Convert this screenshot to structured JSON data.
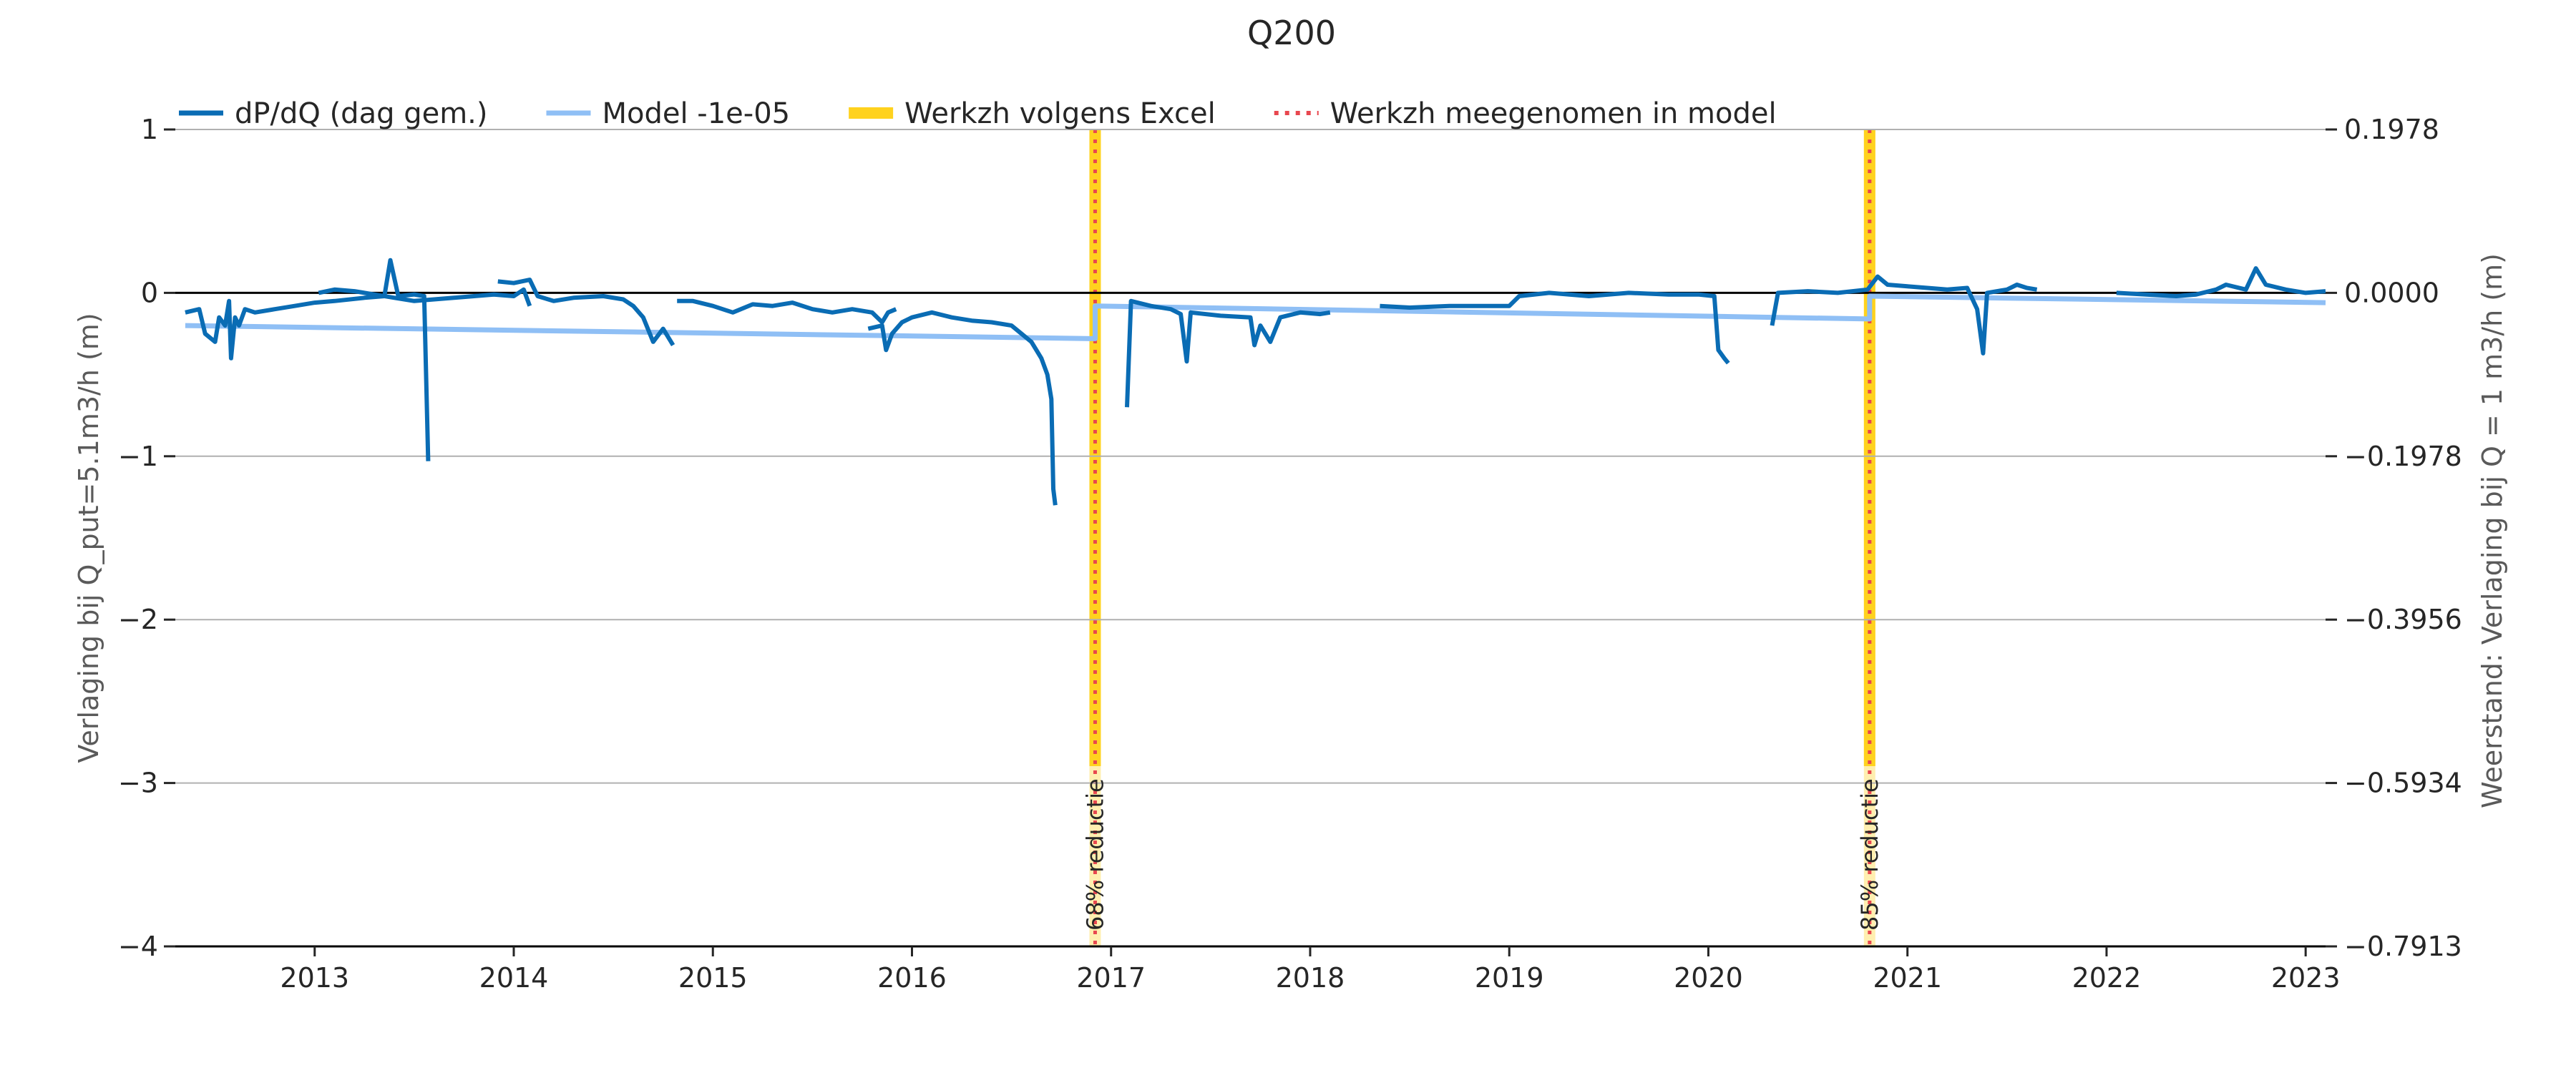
{
  "chart_data": {
    "type": "line",
    "title": "Q200",
    "ylabel": "Verlaging bij Q_put=5.1m3/h (m)",
    "ylabel_right": "Weerstand: Verlaging bij Q = 1 m3/h (m)",
    "xlabel": "",
    "xlim": [
      2012.3,
      2023.1
    ],
    "ylim": [
      -4,
      1
    ],
    "x_ticks": [
      2013,
      2014,
      2015,
      2016,
      2017,
      2018,
      2019,
      2020,
      2021,
      2022,
      2023
    ],
    "x_tick_labels": [
      "2013",
      "2014",
      "2015",
      "2016",
      "2017",
      "2018",
      "2019",
      "2020",
      "2021",
      "2022",
      "2023"
    ],
    "y_ticks": [
      1,
      0,
      -1,
      -2,
      -3,
      -4
    ],
    "y_tick_labels": [
      "1",
      "0",
      "−1",
      "−2",
      "−3",
      "−4"
    ],
    "y2_tick_labels": [
      "0.1978",
      "0.0000",
      "−0.1978",
      "−0.3956",
      "−0.5934",
      "−0.7913"
    ],
    "grid": "horizontal",
    "legend": {
      "placement": "top-left",
      "entries": [
        {
          "name": "dP/dQ (dag gem.)",
          "style": "solid",
          "color": "#0a6cb4"
        },
        {
          "name": "Model -1e-05",
          "style": "solid",
          "color": "#8fbff5"
        },
        {
          "name": "Werkzh volgens Excel",
          "style": "band",
          "color": "#ffd21e"
        },
        {
          "name": "Werkzh meegenomen in model",
          "style": "dotted",
          "color": "#e8474f"
        }
      ]
    },
    "colors": {
      "data": "#0a6cb4",
      "model": "#8fbff5",
      "band": "#ffd21e",
      "dotted": "#e8474f"
    },
    "annotations": [
      {
        "x": 2016.92,
        "text": "68% reductie"
      },
      {
        "x": 2020.81,
        "text": "85% reductie"
      }
    ],
    "series": [
      {
        "name": "dP/dQ (dag gem.)",
        "segments": [
          [
            [
              2012.35,
              -0.12
            ],
            [
              2012.42,
              -0.1
            ],
            [
              2012.45,
              -0.25
            ],
            [
              2012.5,
              -0.3
            ],
            [
              2012.52,
              -0.15
            ],
            [
              2012.55,
              -0.2
            ],
            [
              2012.57,
              -0.05
            ],
            [
              2012.58,
              -0.4
            ],
            [
              2012.6,
              -0.15
            ],
            [
              2012.62,
              -0.2
            ],
            [
              2012.65,
              -0.1
            ],
            [
              2012.7,
              -0.12
            ],
            [
              2012.8,
              -0.1
            ],
            [
              2012.9,
              -0.08
            ],
            [
              2013.0,
              -0.06
            ],
            [
              2013.1,
              -0.05
            ],
            [
              2013.25,
              -0.03
            ],
            [
              2013.35,
              -0.02
            ],
            [
              2013.38,
              0.2
            ],
            [
              2013.42,
              -0.02
            ],
            [
              2013.5,
              -0.01
            ],
            [
              2013.55,
              -0.02
            ],
            [
              2013.57,
              -1.03
            ]
          ],
          [
            [
              2013.02,
              0.0
            ],
            [
              2013.1,
              0.02
            ],
            [
              2013.2,
              0.01
            ],
            [
              2013.3,
              -0.01
            ],
            [
              2013.4,
              -0.03
            ],
            [
              2013.5,
              -0.05
            ],
            [
              2013.6,
              -0.04
            ],
            [
              2013.7,
              -0.03
            ],
            [
              2013.8,
              -0.02
            ],
            [
              2013.9,
              -0.01
            ],
            [
              2014.0,
              -0.02
            ],
            [
              2014.05,
              0.02
            ],
            [
              2014.08,
              -0.08
            ]
          ],
          [
            [
              2013.92,
              0.07
            ],
            [
              2014.0,
              0.06
            ],
            [
              2014.08,
              0.08
            ],
            [
              2014.12,
              -0.02
            ],
            [
              2014.2,
              -0.05
            ],
            [
              2014.3,
              -0.03
            ],
            [
              2014.45,
              -0.02
            ],
            [
              2014.55,
              -0.04
            ],
            [
              2014.6,
              -0.08
            ],
            [
              2014.65,
              -0.15
            ],
            [
              2014.7,
              -0.3
            ],
            [
              2014.75,
              -0.22
            ],
            [
              2014.8,
              -0.32
            ]
          ],
          [
            [
              2014.82,
              -0.05
            ],
            [
              2014.9,
              -0.05
            ],
            [
              2015.0,
              -0.08
            ],
            [
              2015.1,
              -0.12
            ],
            [
              2015.2,
              -0.07
            ],
            [
              2015.3,
              -0.08
            ],
            [
              2015.4,
              -0.06
            ],
            [
              2015.5,
              -0.1
            ],
            [
              2015.6,
              -0.12
            ],
            [
              2015.7,
              -0.1
            ],
            [
              2015.8,
              -0.12
            ],
            [
              2015.85,
              -0.18
            ],
            [
              2015.88,
              -0.12
            ],
            [
              2015.92,
              -0.1
            ]
          ],
          [
            [
              2015.78,
              -0.22
            ],
            [
              2015.85,
              -0.2
            ],
            [
              2015.87,
              -0.35
            ],
            [
              2015.9,
              -0.25
            ],
            [
              2015.95,
              -0.18
            ],
            [
              2016.0,
              -0.15
            ],
            [
              2016.1,
              -0.12
            ],
            [
              2016.2,
              -0.15
            ],
            [
              2016.3,
              -0.17
            ],
            [
              2016.4,
              -0.18
            ],
            [
              2016.5,
              -0.2
            ],
            [
              2016.55,
              -0.25
            ],
            [
              2016.6,
              -0.3
            ],
            [
              2016.65,
              -0.4
            ],
            [
              2016.68,
              -0.5
            ],
            [
              2016.7,
              -0.65
            ],
            [
              2016.71,
              -1.2
            ],
            [
              2016.72,
              -1.3
            ]
          ],
          [
            [
              2017.08,
              -0.7
            ],
            [
              2017.1,
              -0.05
            ],
            [
              2017.2,
              -0.08
            ],
            [
              2017.3,
              -0.1
            ],
            [
              2017.35,
              -0.13
            ],
            [
              2017.38,
              -0.42
            ],
            [
              2017.4,
              -0.12
            ],
            [
              2017.55,
              -0.14
            ],
            [
              2017.7,
              -0.15
            ],
            [
              2017.72,
              -0.32
            ],
            [
              2017.75,
              -0.2
            ],
            [
              2017.8,
              -0.3
            ],
            [
              2017.85,
              -0.15
            ],
            [
              2017.95,
              -0.12
            ],
            [
              2018.05,
              -0.13
            ],
            [
              2018.1,
              -0.12
            ]
          ],
          [
            [
              2018.35,
              -0.08
            ],
            [
              2018.5,
              -0.09
            ],
            [
              2018.7,
              -0.08
            ],
            [
              2018.85,
              -0.08
            ],
            [
              2019.0,
              -0.08
            ],
            [
              2019.05,
              -0.02
            ],
            [
              2019.2,
              0.0
            ],
            [
              2019.4,
              -0.02
            ],
            [
              2019.6,
              0.0
            ],
            [
              2019.8,
              -0.01
            ],
            [
              2019.95,
              -0.01
            ],
            [
              2020.03,
              -0.02
            ],
            [
              2020.05,
              -0.35
            ],
            [
              2020.08,
              -0.4
            ],
            [
              2020.1,
              -0.43
            ]
          ],
          [
            [
              2020.32,
              -0.2
            ],
            [
              2020.35,
              0.0
            ],
            [
              2020.5,
              0.01
            ],
            [
              2020.65,
              0.0
            ],
            [
              2020.8,
              0.02
            ],
            [
              2020.85,
              0.1
            ],
            [
              2020.9,
              0.05
            ],
            [
              2021.0,
              0.04
            ],
            [
              2021.1,
              0.03
            ],
            [
              2021.2,
              0.02
            ],
            [
              2021.3,
              0.03
            ],
            [
              2021.35,
              -0.1
            ],
            [
              2021.38,
              -0.37
            ],
            [
              2021.4,
              0.0
            ],
            [
              2021.5,
              0.02
            ],
            [
              2021.55,
              0.05
            ],
            [
              2021.6,
              0.03
            ],
            [
              2021.65,
              0.02
            ]
          ],
          [
            [
              2022.05,
              0.0
            ],
            [
              2022.2,
              -0.01
            ],
            [
              2022.35,
              -0.02
            ],
            [
              2022.45,
              -0.01
            ],
            [
              2022.55,
              0.02
            ],
            [
              2022.6,
              0.05
            ],
            [
              2022.7,
              0.02
            ],
            [
              2022.75,
              0.15
            ],
            [
              2022.8,
              0.05
            ],
            [
              2022.9,
              0.02
            ],
            [
              2023.0,
              0.0
            ],
            [
              2023.1,
              0.01
            ]
          ]
        ]
      },
      {
        "name": "Model -1e-05",
        "segments": [
          [
            [
              2012.35,
              -0.2
            ],
            [
              2016.92,
              -0.28
            ],
            [
              2016.92,
              -0.08
            ],
            [
              2020.81,
              -0.16
            ],
            [
              2020.81,
              -0.02
            ],
            [
              2023.1,
              -0.06
            ]
          ]
        ]
      }
    ]
  }
}
